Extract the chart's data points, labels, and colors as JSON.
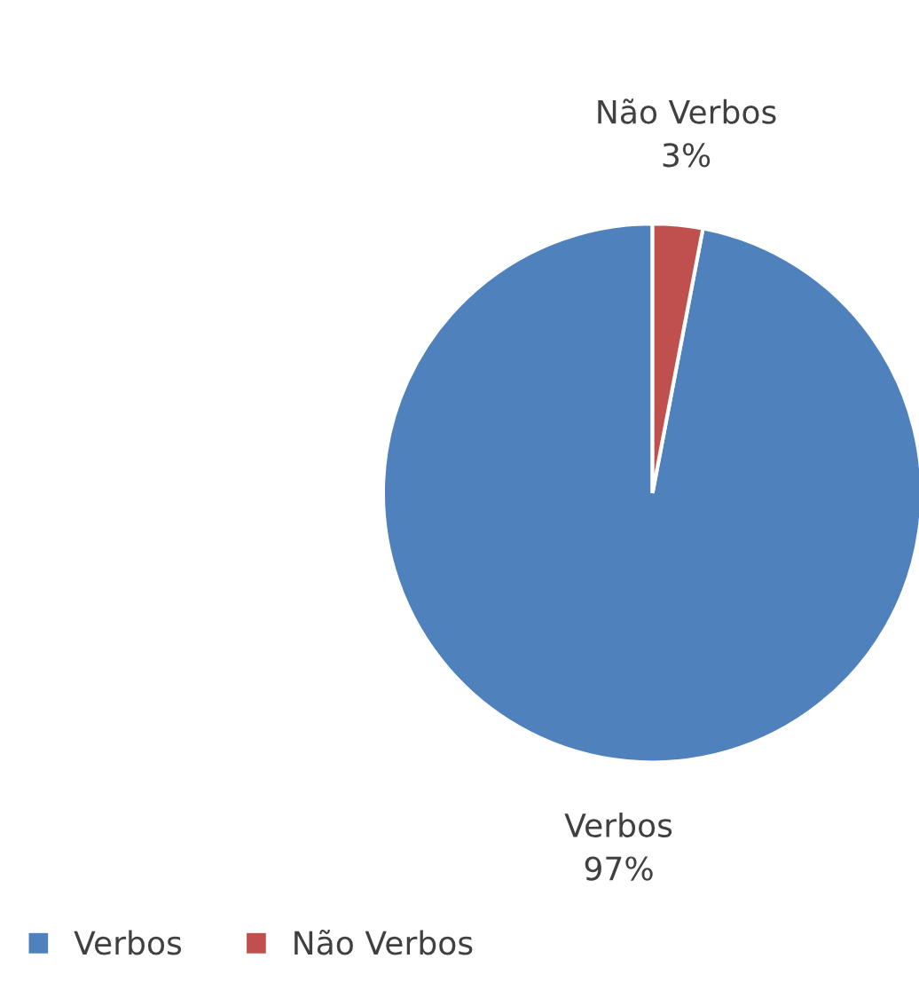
{
  "chart_data": {
    "type": "pie",
    "categories": [
      "Verbos",
      "Não Verbos"
    ],
    "values": [
      97,
      3
    ],
    "colors": [
      "#4f81bd",
      "#c0504d"
    ],
    "value_labels": [
      "97%",
      "3%"
    ],
    "legend": "bottom left"
  }
}
